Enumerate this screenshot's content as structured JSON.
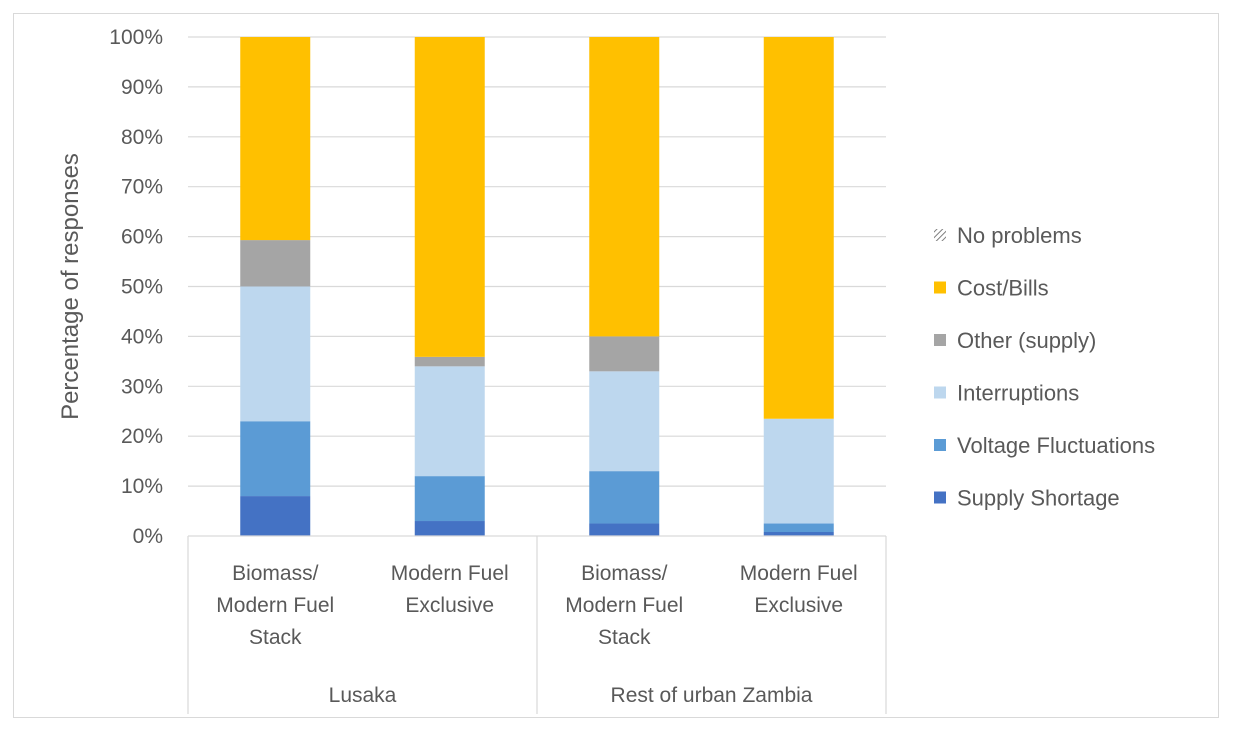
{
  "chart_data": {
    "type": "bar",
    "stacked": true,
    "percent": true,
    "ylabel": "Percentage of responses",
    "ylim": [
      0,
      100
    ],
    "yticks": [
      "0%",
      "10%",
      "20%",
      "30%",
      "40%",
      "50%",
      "60%",
      "70%",
      "80%",
      "90%",
      "100%"
    ],
    "categories": [
      {
        "lines": [
          "Biomass/",
          "Modern Fuel",
          "Stack"
        ]
      },
      {
        "lines": [
          "Modern Fuel",
          "Exclusive"
        ]
      },
      {
        "lines": [
          "Biomass/",
          "Modern Fuel",
          "Stack"
        ]
      },
      {
        "lines": [
          "Modern Fuel",
          "Exclusive"
        ]
      }
    ],
    "groups": [
      {
        "label": "Lusaka",
        "span": [
          0,
          1
        ]
      },
      {
        "label": "Rest of urban Zambia",
        "span": [
          2,
          3
        ]
      }
    ],
    "series": [
      {
        "name": "Supply Shortage",
        "color": "#4472c4",
        "values": [
          8,
          3,
          2.5,
          0.8
        ]
      },
      {
        "name": "Voltage Fluctuations",
        "color": "#5b9bd5",
        "values": [
          15,
          9,
          10.5,
          1.7
        ]
      },
      {
        "name": "Interruptions",
        "color": "#bdd7ee",
        "values": [
          27,
          22,
          20,
          21
        ]
      },
      {
        "name": "Other (supply)",
        "color": "#a5a5a5",
        "values": [
          9.3,
          1.9,
          7,
          0
        ]
      },
      {
        "name": "Cost/Bills",
        "color": "#ffc000",
        "values": [
          40.7,
          64.1,
          60,
          76.5
        ]
      },
      {
        "name": "No problems",
        "color": "#7f7f7f",
        "values": [
          0,
          0,
          0,
          0
        ]
      }
    ],
    "legend_position": "right",
    "grid": true
  }
}
